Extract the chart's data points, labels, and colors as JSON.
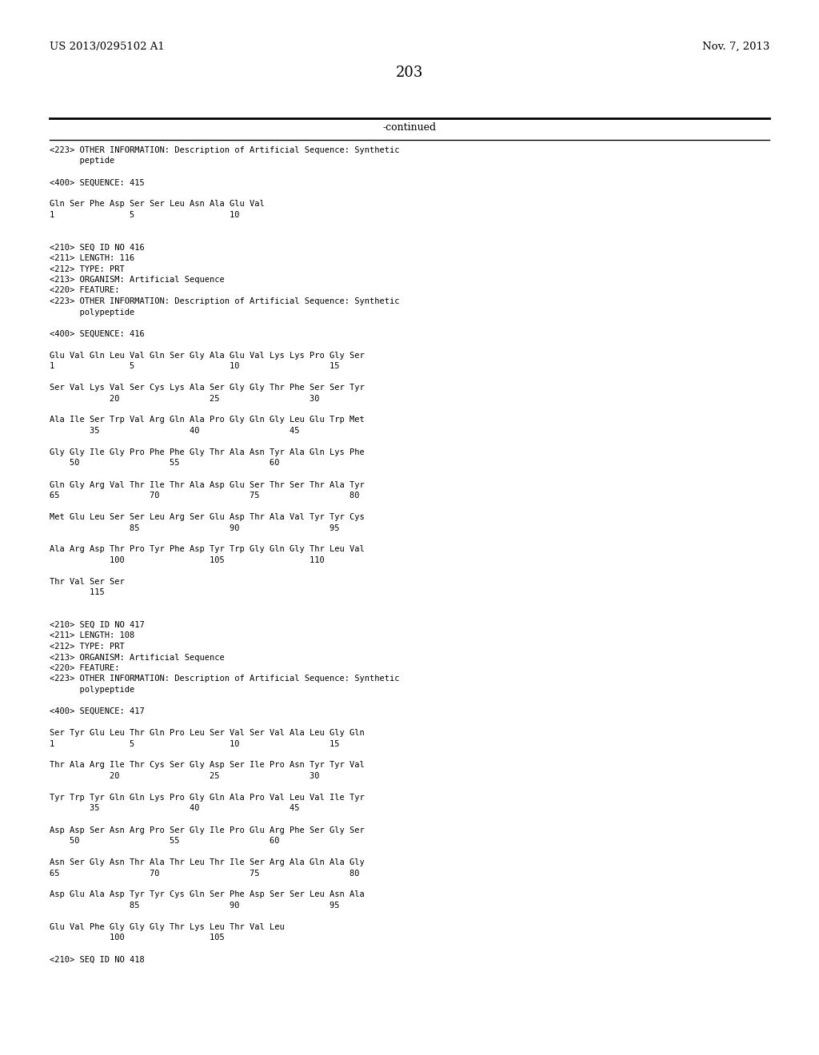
{
  "header_left": "US 2013/0295102 A1",
  "header_right": "Nov. 7, 2013",
  "page_number": "203",
  "continued_text": "-continued",
  "background_color": "#ffffff",
  "text_color": "#000000",
  "lines": [
    "<223> OTHER INFORMATION: Description of Artificial Sequence: Synthetic",
    "      peptide",
    "",
    "<400> SEQUENCE: 415",
    "",
    "Gln Ser Phe Asp Ser Ser Leu Asn Ala Glu Val",
    "1               5                   10",
    "",
    "",
    "<210> SEQ ID NO 416",
    "<211> LENGTH: 116",
    "<212> TYPE: PRT",
    "<213> ORGANISM: Artificial Sequence",
    "<220> FEATURE:",
    "<223> OTHER INFORMATION: Description of Artificial Sequence: Synthetic",
    "      polypeptide",
    "",
    "<400> SEQUENCE: 416",
    "",
    "Glu Val Gln Leu Val Gln Ser Gly Ala Glu Val Lys Lys Pro Gly Ser",
    "1               5                   10                  15",
    "",
    "Ser Val Lys Val Ser Cys Lys Ala Ser Gly Gly Thr Phe Ser Ser Tyr",
    "            20                  25                  30",
    "",
    "Ala Ile Ser Trp Val Arg Gln Ala Pro Gly Gln Gly Leu Glu Trp Met",
    "        35                  40                  45",
    "",
    "Gly Gly Ile Gly Pro Phe Phe Gly Thr Ala Asn Tyr Ala Gln Lys Phe",
    "    50                  55                  60",
    "",
    "Gln Gly Arg Val Thr Ile Thr Ala Asp Glu Ser Thr Ser Thr Ala Tyr",
    "65                  70                  75                  80",
    "",
    "Met Glu Leu Ser Ser Leu Arg Ser Glu Asp Thr Ala Val Tyr Tyr Cys",
    "                85                  90                  95",
    "",
    "Ala Arg Asp Thr Pro Tyr Phe Asp Tyr Trp Gly Gln Gly Thr Leu Val",
    "            100                 105                 110",
    "",
    "Thr Val Ser Ser",
    "        115",
    "",
    "",
    "<210> SEQ ID NO 417",
    "<211> LENGTH: 108",
    "<212> TYPE: PRT",
    "<213> ORGANISM: Artificial Sequence",
    "<220> FEATURE:",
    "<223> OTHER INFORMATION: Description of Artificial Sequence: Synthetic",
    "      polypeptide",
    "",
    "<400> SEQUENCE: 417",
    "",
    "Ser Tyr Glu Leu Thr Gln Pro Leu Ser Val Ser Val Ala Leu Gly Gln",
    "1               5                   10                  15",
    "",
    "Thr Ala Arg Ile Thr Cys Ser Gly Asp Ser Ile Pro Asn Tyr Tyr Val",
    "            20                  25                  30",
    "",
    "Tyr Trp Tyr Gln Gln Lys Pro Gly Gln Ala Pro Val Leu Val Ile Tyr",
    "        35                  40                  45",
    "",
    "Asp Asp Ser Asn Arg Pro Ser Gly Ile Pro Glu Arg Phe Ser Gly Ser",
    "    50                  55                  60",
    "",
    "Asn Ser Gly Asn Thr Ala Thr Leu Thr Ile Ser Arg Ala Gln Ala Gly",
    "65                  70                  75                  80",
    "",
    "Asp Glu Ala Asp Tyr Tyr Cys Gln Ser Phe Asp Ser Ser Leu Asn Ala",
    "                85                  90                  95",
    "",
    "Glu Val Phe Gly Gly Gly Thr Lys Leu Thr Val Leu",
    "            100                 105",
    "",
    "<210> SEQ ID NO 418"
  ]
}
